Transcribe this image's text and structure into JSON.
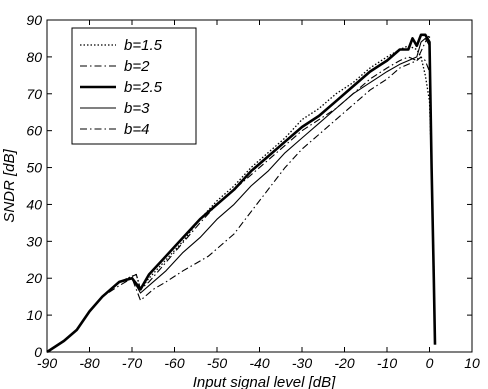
{
  "chart_data": {
    "type": "line",
    "xlabel": "Input signal level [dB]",
    "ylabel": "SNDR [dB]",
    "xlim": [
      -90,
      10
    ],
    "ylim": [
      0,
      90
    ],
    "xticks": [
      -90,
      -80,
      -70,
      -60,
      -50,
      -40,
      -30,
      -20,
      -10,
      0,
      10
    ],
    "yticks": [
      0,
      10,
      20,
      30,
      40,
      50,
      60,
      70,
      80,
      90
    ],
    "grid": false,
    "legend_position": "top-left",
    "series": [
      {
        "name": "b=1.5",
        "style": "dotted",
        "points": [
          [
            -90,
            0
          ],
          [
            -86,
            3
          ],
          [
            -83,
            6
          ],
          [
            -80,
            11
          ],
          [
            -77,
            15
          ],
          [
            -73,
            19
          ],
          [
            -69,
            21
          ],
          [
            -68,
            17
          ],
          [
            -66,
            20
          ],
          [
            -62,
            25
          ],
          [
            -58,
            30
          ],
          [
            -54,
            36
          ],
          [
            -50,
            41
          ],
          [
            -46,
            45
          ],
          [
            -42,
            50
          ],
          [
            -38,
            54
          ],
          [
            -34,
            58
          ],
          [
            -30,
            63
          ],
          [
            -26,
            66
          ],
          [
            -22,
            70
          ],
          [
            -18,
            73
          ],
          [
            -14,
            77
          ],
          [
            -10,
            80
          ],
          [
            -7,
            82
          ],
          [
            -5,
            83
          ],
          [
            -3,
            82
          ],
          [
            -2,
            80
          ],
          [
            -1,
            75
          ],
          [
            0,
            68
          ],
          [
            0.5,
            50
          ],
          [
            1,
            25
          ],
          [
            1.3,
            5
          ]
        ]
      },
      {
        "name": "b=2",
        "style": "dashdot",
        "points": [
          [
            -90,
            0
          ],
          [
            -86,
            3
          ],
          [
            -83,
            6
          ],
          [
            -80,
            11
          ],
          [
            -77,
            15
          ],
          [
            -73,
            19
          ],
          [
            -69,
            21
          ],
          [
            -68,
            17
          ],
          [
            -66,
            19
          ],
          [
            -63,
            23
          ],
          [
            -60,
            27
          ],
          [
            -57,
            31
          ],
          [
            -54,
            35
          ],
          [
            -50,
            40
          ],
          [
            -46,
            44
          ],
          [
            -42,
            48
          ],
          [
            -38,
            52
          ],
          [
            -34,
            56
          ],
          [
            -30,
            60
          ],
          [
            -26,
            63
          ],
          [
            -22,
            66
          ],
          [
            -18,
            70
          ],
          [
            -14,
            74
          ],
          [
            -10,
            77
          ],
          [
            -7,
            79
          ],
          [
            -5,
            80
          ],
          [
            -3,
            79
          ],
          [
            -1,
            84
          ],
          [
            0,
            86
          ],
          [
            0.5,
            50
          ],
          [
            1,
            20
          ],
          [
            1.3,
            3
          ]
        ]
      },
      {
        "name": "b=2.5",
        "style": "thick",
        "points": [
          [
            -90,
            0
          ],
          [
            -86,
            3
          ],
          [
            -83,
            6
          ],
          [
            -80,
            11
          ],
          [
            -77,
            15
          ],
          [
            -73,
            19
          ],
          [
            -70,
            20
          ],
          [
            -68,
            17
          ],
          [
            -66,
            21
          ],
          [
            -62,
            26
          ],
          [
            -58,
            31
          ],
          [
            -54,
            36
          ],
          [
            -50,
            40
          ],
          [
            -46,
            44
          ],
          [
            -42,
            49
          ],
          [
            -38,
            53
          ],
          [
            -34,
            57
          ],
          [
            -30,
            61
          ],
          [
            -26,
            64
          ],
          [
            -22,
            68
          ],
          [
            -18,
            72
          ],
          [
            -14,
            76
          ],
          [
            -10,
            79
          ],
          [
            -7,
            82
          ],
          [
            -5,
            82
          ],
          [
            -4,
            85
          ],
          [
            -3,
            83
          ],
          [
            -2,
            86
          ],
          [
            -1,
            86
          ],
          [
            0,
            84
          ],
          [
            0.5,
            50
          ],
          [
            1,
            20
          ],
          [
            1.3,
            2
          ]
        ]
      },
      {
        "name": "b=3",
        "style": "solid",
        "points": [
          [
            -90,
            0
          ],
          [
            -86,
            3
          ],
          [
            -83,
            6
          ],
          [
            -80,
            11
          ],
          [
            -77,
            15
          ],
          [
            -73,
            19
          ],
          [
            -70,
            20
          ],
          [
            -68,
            16
          ],
          [
            -66,
            18
          ],
          [
            -62,
            22
          ],
          [
            -58,
            27
          ],
          [
            -54,
            31
          ],
          [
            -50,
            36
          ],
          [
            -46,
            40
          ],
          [
            -42,
            45
          ],
          [
            -38,
            49
          ],
          [
            -34,
            54
          ],
          [
            -30,
            58
          ],
          [
            -26,
            62
          ],
          [
            -22,
            66
          ],
          [
            -18,
            70
          ],
          [
            -14,
            73
          ],
          [
            -10,
            76
          ],
          [
            -7,
            78
          ],
          [
            -5,
            79
          ],
          [
            -3,
            80
          ],
          [
            -2,
            84
          ],
          [
            -1,
            85
          ],
          [
            0,
            83
          ],
          [
            0.5,
            50
          ],
          [
            1,
            20
          ],
          [
            1.3,
            2
          ]
        ]
      },
      {
        "name": "b=4",
        "style": "dashdot",
        "points": [
          [
            -90,
            0
          ],
          [
            -86,
            3
          ],
          [
            -83,
            6
          ],
          [
            -80,
            11
          ],
          [
            -77,
            15
          ],
          [
            -73,
            18
          ],
          [
            -70,
            20
          ],
          [
            -68,
            14
          ],
          [
            -65,
            17
          ],
          [
            -62,
            19
          ],
          [
            -58,
            22
          ],
          [
            -55,
            24
          ],
          [
            -52,
            26
          ],
          [
            -49,
            29
          ],
          [
            -46,
            32
          ],
          [
            -42,
            38
          ],
          [
            -38,
            44
          ],
          [
            -34,
            50
          ],
          [
            -30,
            55
          ],
          [
            -26,
            59
          ],
          [
            -22,
            63
          ],
          [
            -18,
            67
          ],
          [
            -14,
            71
          ],
          [
            -10,
            74
          ],
          [
            -7,
            77
          ],
          [
            -5,
            78
          ],
          [
            -3,
            79
          ],
          [
            -2,
            80
          ],
          [
            -1,
            79
          ],
          [
            0,
            76
          ],
          [
            0.5,
            50
          ],
          [
            1,
            20
          ],
          [
            1.3,
            2
          ]
        ]
      }
    ]
  }
}
